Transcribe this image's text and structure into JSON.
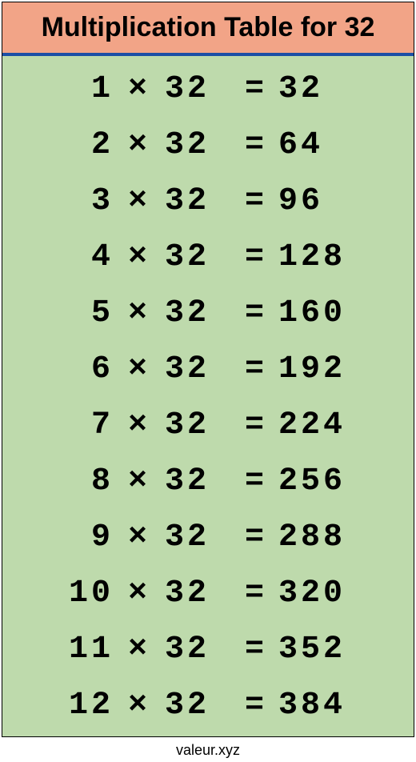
{
  "title": "Multiplication Table for 32",
  "footer": "valeur.xyz",
  "colors": {
    "header_bg": "#f2a487",
    "header_text": "#000000",
    "header_border_bottom": "#1b4fa6",
    "body_bg": "#bedaac",
    "text": "#000000",
    "container_border": "#000000"
  },
  "typography": {
    "title_fontsize": 34,
    "title_weight": "bold",
    "row_fontsize": 40,
    "row_weight": "bold",
    "row_family": "monospace",
    "row_letter_spacing": 4,
    "footer_fontsize": 18
  },
  "table": {
    "type": "table",
    "multiplicand": 32,
    "operator": "×",
    "equals": "=",
    "rows": [
      {
        "multiplier": 1,
        "result": 32
      },
      {
        "multiplier": 2,
        "result": 64
      },
      {
        "multiplier": 3,
        "result": 96
      },
      {
        "multiplier": 4,
        "result": 128
      },
      {
        "multiplier": 5,
        "result": 160
      },
      {
        "multiplier": 6,
        "result": 192
      },
      {
        "multiplier": 7,
        "result": 224
      },
      {
        "multiplier": 8,
        "result": 256
      },
      {
        "multiplier": 9,
        "result": 288
      },
      {
        "multiplier": 10,
        "result": 320
      },
      {
        "multiplier": 11,
        "result": 352
      },
      {
        "multiplier": 12,
        "result": 384
      }
    ]
  }
}
